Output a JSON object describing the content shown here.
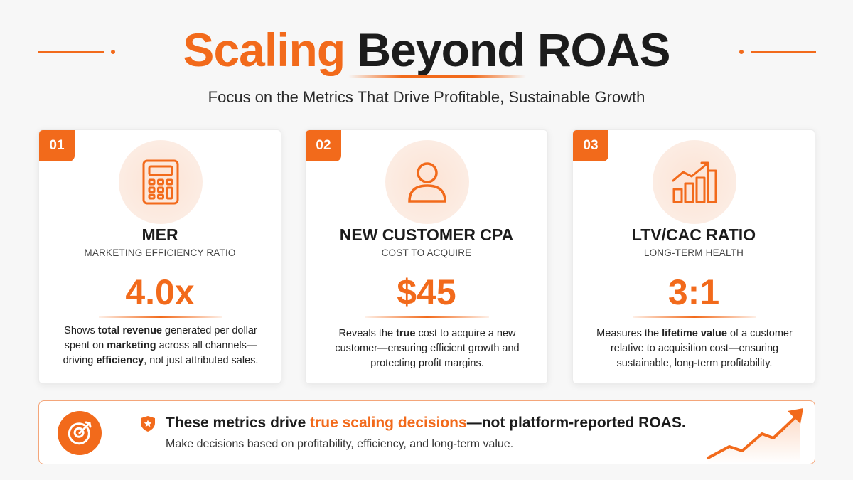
{
  "header": {
    "title_part1": "Scaling",
    "title_part2": "Beyond ROAS",
    "subtitle": "Focus on the Metrics That Drive Profitable, Sustainable Growth"
  },
  "cards": [
    {
      "number": "01",
      "icon": "calculator-icon",
      "title": "MER",
      "subtitle": "MARKETING EFFICIENCY RATIO",
      "value": "4.0x",
      "desc": [
        {
          "text": "Shows ",
          "bold": false
        },
        {
          "text": "total revenue",
          "bold": true
        },
        {
          "text": " generated per dollar spent on ",
          "bold": false
        },
        {
          "text": "marketing",
          "bold": true
        },
        {
          "text": " across all channels—driving ",
          "bold": false
        },
        {
          "text": "efficiency",
          "bold": true
        },
        {
          "text": ", not just attributed sales.",
          "bold": false
        }
      ]
    },
    {
      "number": "02",
      "icon": "user-icon",
      "title": "NEW CUSTOMER CPA",
      "subtitle": "COST TO ACQUIRE",
      "value": "$45",
      "desc": [
        {
          "text": "Reveals the ",
          "bold": false
        },
        {
          "text": "true",
          "bold": true
        },
        {
          "text": " cost to acquire a new customer—ensuring efficient growth and protecting profit margins.",
          "bold": false
        }
      ]
    },
    {
      "number": "03",
      "icon": "growth-chart-icon",
      "title": "LTV/CAC RATIO",
      "subtitle": "LONG-TERM HEALTH",
      "value": "3:1",
      "desc": [
        {
          "text": "Measures the ",
          "bold": false
        },
        {
          "text": "lifetime value",
          "bold": true
        },
        {
          "text": " of a customer relative to acquisition cost—ensuring sustainable, long-term profitability.",
          "bold": false
        }
      ]
    }
  ],
  "banner": {
    "icon": "target-icon",
    "badge_icon": "shield-star-icon",
    "main_part1": "These metrics drive ",
    "main_highlight": "true scaling decisions",
    "main_part2": "—not platform-reported ROAS.",
    "sub": "Make decisions based on profitability, efficiency, and long-term value."
  },
  "colors": {
    "accent": "#f26a1b",
    "dark": "#1c1c1c",
    "background": "#f7f7f7"
  }
}
